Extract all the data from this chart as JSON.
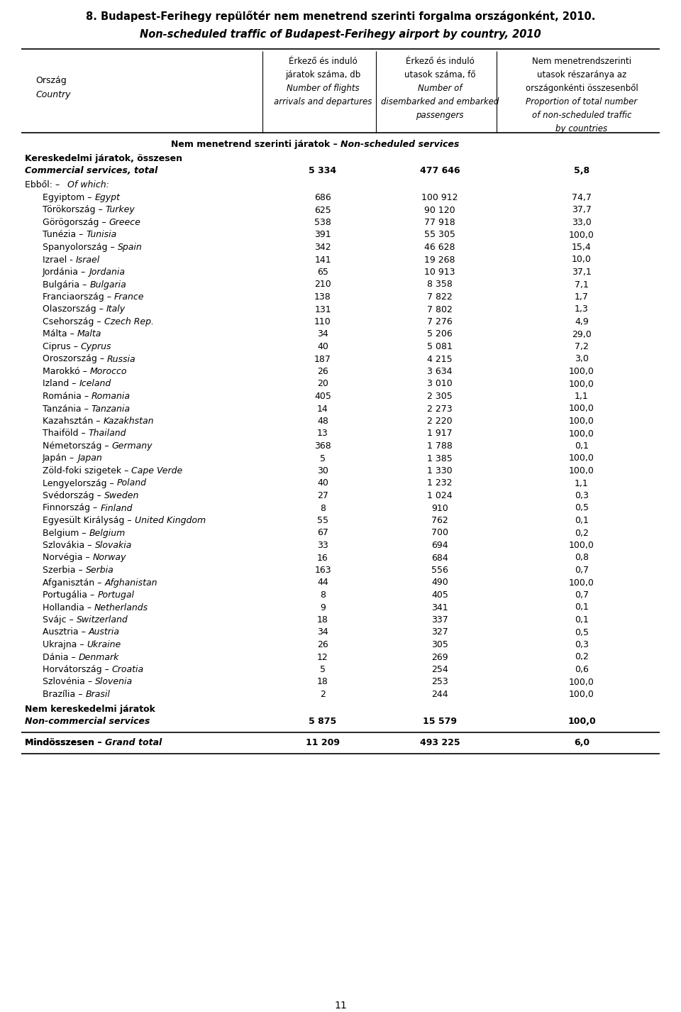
{
  "title1": "8. Budapest-Ferihegy repülőtér nem menetrend szerinti forgalma országonként, 2010.",
  "title2": "Non-scheduled traffic of Budapest-Ferihegy airport by country, 2010",
  "rows": [
    [
      "Egyiptom",
      "Egypt",
      "686",
      "100 912",
      "74,7"
    ],
    [
      "Törökország",
      "Turkey",
      "625",
      "90 120",
      "37,7"
    ],
    [
      "Görögország",
      "Greece",
      "538",
      "77 918",
      "33,0"
    ],
    [
      "Tunézia",
      "Tunisia",
      "391",
      "55 305",
      "100,0"
    ],
    [
      "Spanyolország",
      "Spain",
      "342",
      "46 628",
      "15,4"
    ],
    [
      "Izrael",
      "Israel",
      "141",
      "19 268",
      "10,0"
    ],
    [
      "Jordánia",
      "Jordania",
      "65",
      "10 913",
      "37,1"
    ],
    [
      "Bulgária",
      "Bulgaria",
      "210",
      "8 358",
      "7,1"
    ],
    [
      "Franciaország",
      "France",
      "138",
      "7 822",
      "1,7"
    ],
    [
      "Olaszország",
      "Italy",
      "131",
      "7 802",
      "1,3"
    ],
    [
      "Csehország",
      "Czech Rep.",
      "110",
      "7 276",
      "4,9"
    ],
    [
      "Málta",
      "Malta",
      "34",
      "5 206",
      "29,0"
    ],
    [
      "Ciprus",
      "Cyprus",
      "40",
      "5 081",
      "7,2"
    ],
    [
      "Oroszország",
      "Russia",
      "187",
      "4 215",
      "3,0"
    ],
    [
      "Marokkó",
      "Morocco",
      "26",
      "3 634",
      "100,0"
    ],
    [
      "Izland",
      "Iceland",
      "20",
      "3 010",
      "100,0"
    ],
    [
      "Románia",
      "Romania",
      "405",
      "2 305",
      "1,1"
    ],
    [
      "Tanzánia",
      "Tanzania",
      "14",
      "2 273",
      "100,0"
    ],
    [
      "Kazahsztán",
      "Kazakhstan",
      "48",
      "2 220",
      "100,0"
    ],
    [
      "Thaiföld",
      "Thailand",
      "13",
      "1 917",
      "100,0"
    ],
    [
      "Németország",
      "Germany",
      "368",
      "1 788",
      "0,1"
    ],
    [
      "Japán",
      "Japan",
      "5",
      "1 385",
      "100,0"
    ],
    [
      "Zöld-foki szigetek",
      "Cape Verde",
      "30",
      "1 330",
      "100,0"
    ],
    [
      "Lengyelország",
      "Poland",
      "40",
      "1 232",
      "1,1"
    ],
    [
      "Svédország",
      "Sweden",
      "27",
      "1 024",
      "0,3"
    ],
    [
      "Finnország",
      "Finland",
      "8",
      "910",
      "0,5"
    ],
    [
      "Egyesült Királyság",
      "United Kingdom",
      "55",
      "762",
      "0,1"
    ],
    [
      "Belgium",
      "Belgium",
      "67",
      "700",
      "0,2"
    ],
    [
      "Szlovákia",
      "Slovakia",
      "33",
      "694",
      "100,0"
    ],
    [
      "Norvégia",
      "Norway",
      "16",
      "684",
      "0,8"
    ],
    [
      "Szerbia",
      "Serbia",
      "163",
      "556",
      "0,7"
    ],
    [
      "Afganisztán",
      "Afghanistan",
      "44",
      "490",
      "100,0"
    ],
    [
      "Portugália",
      "Portugal",
      "8",
      "405",
      "0,7"
    ],
    [
      "Hollandia",
      "Netherlands",
      "9",
      "341",
      "0,1"
    ],
    [
      "Svájc",
      "Switzerland",
      "18",
      "337",
      "0,1"
    ],
    [
      "Ausztria",
      "Austria",
      "34",
      "327",
      "0,5"
    ],
    [
      "Ukrajna",
      "Ukraine",
      "26",
      "305",
      "0,3"
    ],
    [
      "Dánia",
      "Denmark",
      "12",
      "269",
      "0,2"
    ],
    [
      "Horvátország",
      "Croatia",
      "5",
      "254",
      "0,6"
    ],
    [
      "Szlovénia",
      "Slovenia",
      "18",
      "253",
      "100,0"
    ],
    [
      "Brazília",
      "Brasil",
      "2",
      "244",
      "100,0"
    ]
  ],
  "row_separators": [
    "–",
    "–",
    "–",
    "–",
    "–",
    "-",
    "–",
    "–",
    "–",
    "–",
    "–",
    "–",
    "–",
    "–",
    "–",
    "–",
    "–",
    "–",
    "–",
    "–",
    "–",
    "–",
    "–",
    "–",
    "–",
    "–",
    "–",
    "–",
    "–",
    "–",
    "–",
    "–",
    "–",
    "–",
    "–",
    "–",
    "–",
    "–",
    "–",
    "–",
    "–"
  ],
  "subtotal_flights": "5 334",
  "subtotal_passengers": "477 646",
  "subtotal_proportion": "5,8",
  "noncom_flights": "5 875",
  "noncom_passengers": "15 579",
  "noncom_proportion": "100,0",
  "grandtotal_flights": "11 209",
  "grandtotal_passengers": "493 225",
  "grandtotal_proportion": "6,0",
  "page_number": "11"
}
